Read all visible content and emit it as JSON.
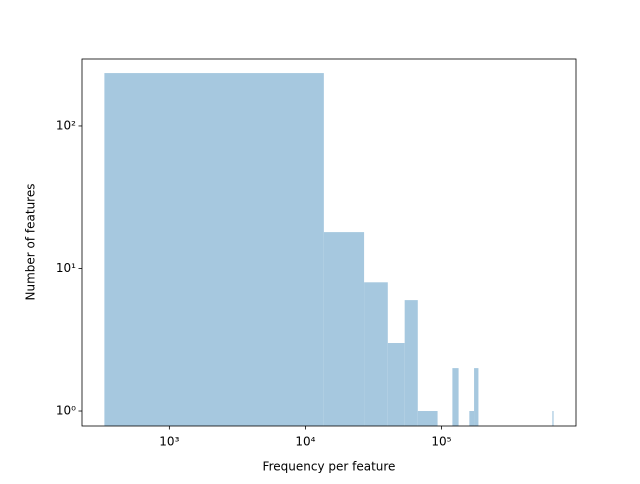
{
  "chart_data": {
    "type": "histogram",
    "xlabel": "Frequency per feature",
    "ylabel": "Number of features",
    "bins": [
      333,
      13666,
      26999,
      40332,
      53665,
      66998,
      80331,
      93664,
      106997,
      120330,
      133663,
      146996,
      160329,
      173662,
      186995,
      200328,
      213661,
      226994,
      240327,
      253660,
      266993,
      280326,
      293659,
      306992,
      320325,
      333658,
      346991,
      360324,
      373657,
      386990,
      400323,
      413656,
      426989,
      440322,
      453655,
      466988,
      480321,
      493654,
      506987,
      520320,
      533653,
      546986,
      560319,
      573652,
      586985,
      600318,
      613651,
      626984,
      640317,
      653650,
      666983
    ],
    "values": [
      235,
      18,
      8,
      3,
      6,
      1,
      1,
      0,
      0,
      2,
      0,
      0,
      1,
      2,
      0,
      0,
      0,
      0,
      0,
      0,
      0,
      0,
      0,
      0,
      0,
      0,
      0,
      0,
      0,
      0,
      0,
      0,
      0,
      0,
      0,
      0,
      0,
      0,
      0,
      0,
      0,
      0,
      0,
      0,
      0,
      0,
      0,
      0,
      0,
      1
    ],
    "color": "#a6c8df",
    "xscale": "log",
    "yscale": "log",
    "xlim": [
      228,
      975000
    ],
    "ylim": [
      0.785,
      295
    ],
    "xticks": [
      {
        "value": 1000,
        "label": "10³"
      },
      {
        "value": 10000,
        "label": "10⁴"
      },
      {
        "value": 100000,
        "label": "10⁵"
      }
    ],
    "yticks": [
      {
        "value": 1,
        "label": "10⁰"
      },
      {
        "value": 10,
        "label": "10¹"
      },
      {
        "value": 100,
        "label": "10²"
      }
    ]
  }
}
